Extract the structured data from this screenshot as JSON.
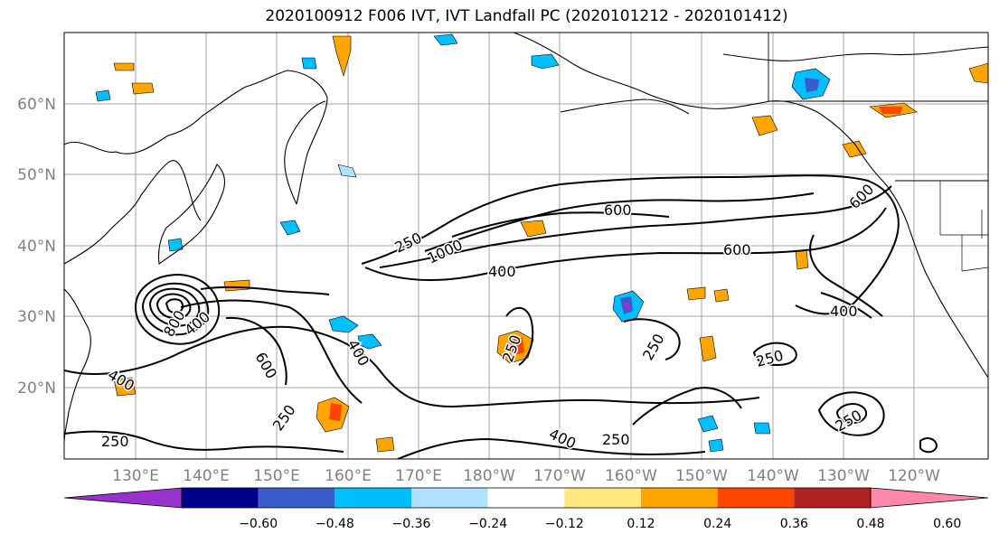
{
  "title": "2020100912 F006 IVT, IVT Landfall PC (2020101212 - 2020101412)",
  "map": {
    "lon_labels": [
      "130°E",
      "140°E",
      "150°E",
      "160°E",
      "170°E",
      "180°W",
      "170°W",
      "160°W",
      "150°W",
      "140°W",
      "130°W",
      "120°W"
    ],
    "lat_labels": [
      "20°N",
      "30°N",
      "40°N",
      "50°N",
      "60°N"
    ],
    "contour_labels": [
      "600",
      "600",
      "600",
      "400",
      "400",
      "400",
      "400",
      "250",
      "250",
      "250",
      "250",
      "250",
      "250",
      "1000",
      "800",
      "400",
      "250",
      "600",
      "250",
      "400"
    ]
  },
  "colorbar": {
    "ticks": [
      "−0.60",
      "−0.48",
      "−0.36",
      "−0.24",
      "−0.12",
      "0.12",
      "0.24",
      "0.36",
      "0.48",
      "0.60"
    ],
    "colors": [
      "#9932cc",
      "#00008b",
      "#3a5bcb",
      "#00bfff",
      "#afe0ff",
      "#ffffff",
      "#ffe780",
      "#ffa500",
      "#ff4500",
      "#b22222",
      "#ff88aa"
    ]
  },
  "palette": {
    "neg_light": "#afe0ff",
    "neg_mid": "#00bfff",
    "neg_dark": "#3a5bcb",
    "neg_purple": "#9932cc",
    "pos_light": "#ffe780",
    "pos_mid": "#ffa500",
    "pos_dark": "#ff4500"
  }
}
